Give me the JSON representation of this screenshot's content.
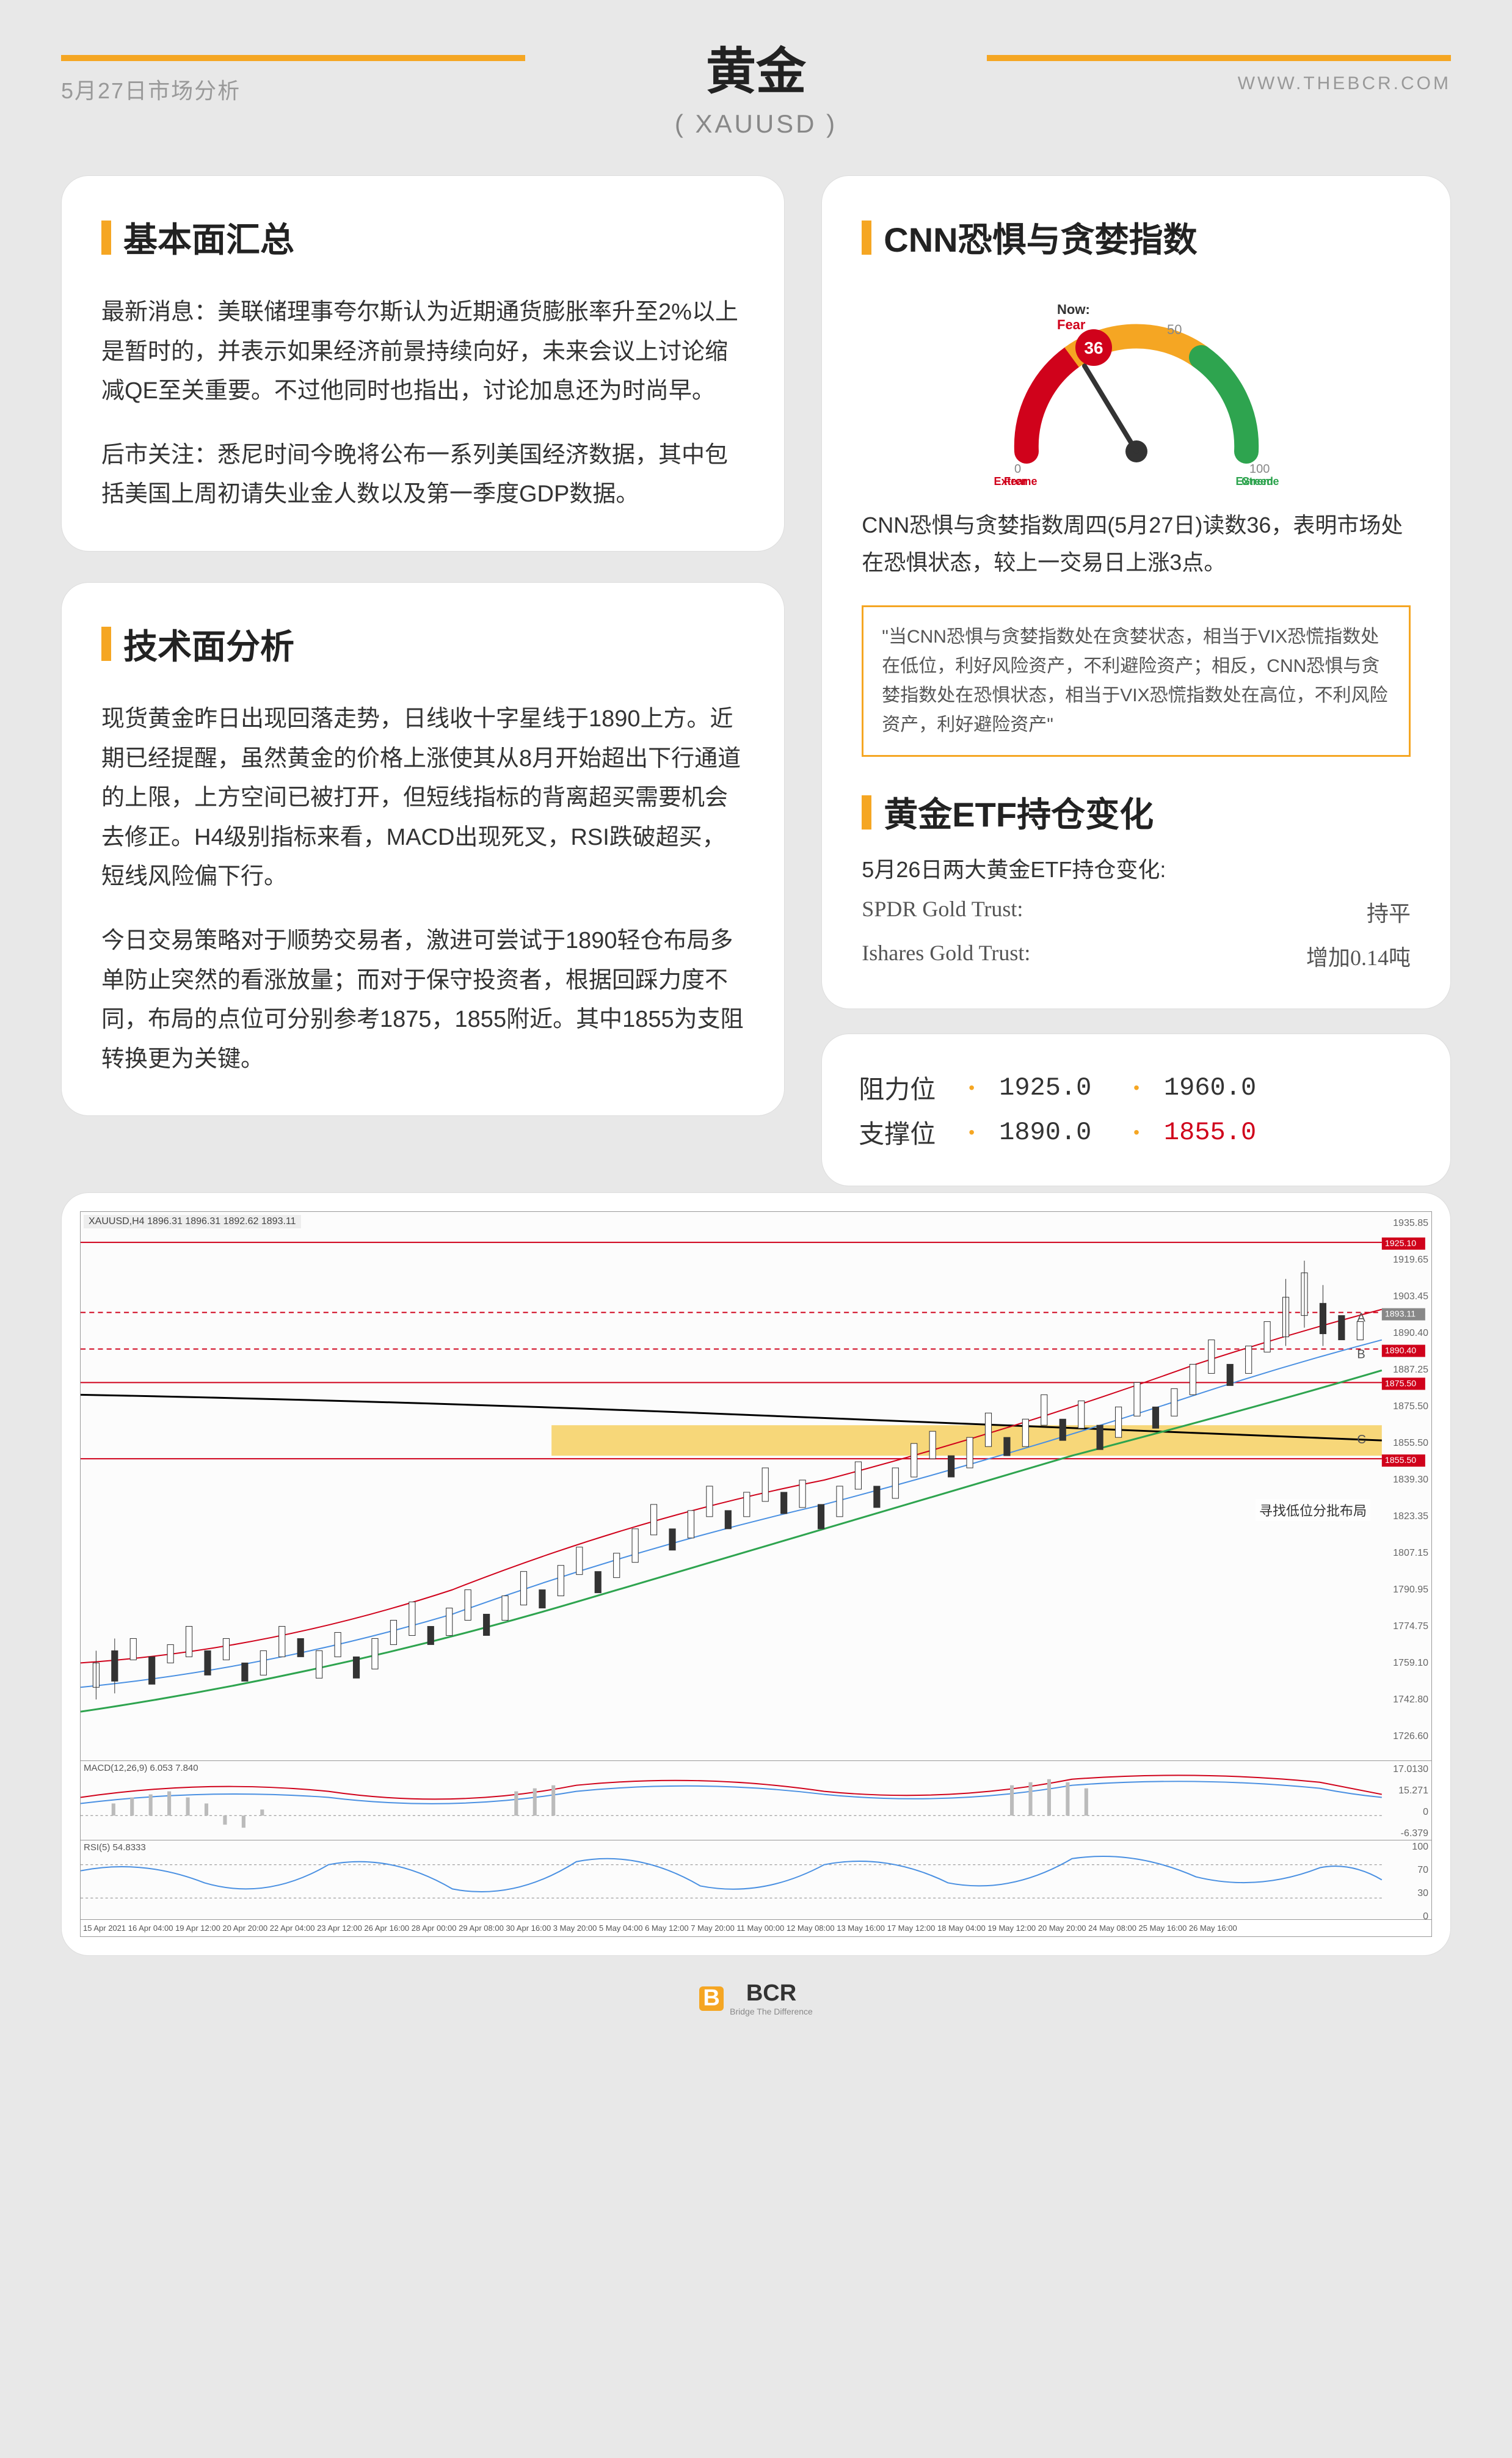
{
  "header": {
    "date": "5月27日市场分析",
    "title": "黄金",
    "subtitle": "( XAUUSD )",
    "url": "WWW.THEBCR.COM"
  },
  "fundamentals": {
    "title": "基本面汇总",
    "p1": "最新消息：美联储理事夸尔斯认为近期通货膨胀率升至2%以上是暂时的，并表示如果经济前景持续向好，未来会议上讨论缩减QE至关重要。不过他同时也指出，讨论加息还为时尚早。",
    "p2": "后市关注：悉尼时间今晚将公布一系列美国经济数据，其中包括美国上周初请失业金人数以及第一季度GDP数据。"
  },
  "technical": {
    "title": "技术面分析",
    "p1": "现货黄金昨日出现回落走势，日线收十字星线于1890上方。近期已经提醒，虽然黄金的价格上涨使其从8月开始超出下行通道的上限，上方空间已被打开，但短线指标的背离超买需要机会去修正。H4级别指标来看，MACD出现死叉，RSI跌破超买，短线风险偏下行。",
    "p2": "今日交易策略对于顺势交易者，激进可尝试于1890轻仓布局多单防止突然的看涨放量；而对于保守投资者，根据回踩力度不同，布局的点位可分别参考1875，1855附近。其中1855为支阻转换更为关键。"
  },
  "cnn": {
    "title": "CNN恐惧与贪婪指数",
    "now_label": "Now:",
    "fear_label": "Fear",
    "value": "36",
    "scale_0": "0",
    "scale_50": "50",
    "scale_100": "100",
    "extreme_fear": "Extreme Fear",
    "extreme_greed": "Extreme Greed",
    "desc": "CNN恐惧与贪婪指数周四(5月27日)读数36，表明市场处在恐惧状态，较上一交易日上涨3点。",
    "quote": "\"当CNN恐惧与贪婪指数处在贪婪状态，相当于VIX恐慌指数处在低位，利好风险资产，不利避险资产；相反，CNN恐惧与贪婪指数处在恐惧状态，相当于VIX恐慌指数处在高位，不利风险资产，利好避险资产\""
  },
  "etf": {
    "title": "黄金ETF持仓变化",
    "subtitle": "5月26日两大黄金ETF持仓变化:",
    "rows": [
      {
        "name": "SPDR Gold Trust:",
        "value": "持平"
      },
      {
        "name": "Ishares Gold Trust:",
        "value": "增加0.14吨"
      }
    ]
  },
  "levels": {
    "resistance_label": "阻力位",
    "support_label": "支撑位",
    "r1": "1925.0",
    "r2": "1960.0",
    "s1": "1890.0",
    "s2": "1855.0"
  },
  "chart": {
    "info": "XAUUSD,H4  1896.31 1896.31 1892.62 1893.11",
    "annotation": "寻找低位分批布局",
    "yticks": [
      "1935.85",
      "1919.65",
      "1903.45",
      "1890.40",
      "1887.25",
      "1875.50",
      "1855.50",
      "1839.30",
      "1823.35",
      "1807.15",
      "1790.95",
      "1774.75",
      "1759.10",
      "1742.80",
      "1726.60"
    ],
    "abc": [
      "A",
      "B",
      "C"
    ],
    "macd_label": "MACD(12,26,9) 6.053 7.840",
    "macd_right": [
      "17.0130",
      "15.271",
      "0",
      "-6.379"
    ],
    "rsi_label": "RSI(5) 54.8333",
    "rsi_right": [
      "100",
      "70",
      "30",
      "0"
    ],
    "xaxis": "15 Apr 2021  16 Apr 04:00  19 Apr 12:00  20 Apr 20:00  22 Apr 04:00  23 Apr 12:00  26 Apr 16:00  28 Apr 00:00  29 Apr 08:00  30 Apr 16:00  3 May 20:00  5 May 04:00  6 May 12:00  7 May 20:00  11 May 00:00  12 May 08:00  13 May 16:00  17 May 12:00  18 May 04:00  19 May 12:00  20 May 20:00  24 May 08:00  25 May 16:00  26 May 16:00"
  },
  "footer": {
    "brand": "BCR",
    "tagline": "Bridge The Difference"
  },
  "colors": {
    "accent": "#f5a623",
    "red": "#d0021b",
    "green": "#2ea44f"
  }
}
